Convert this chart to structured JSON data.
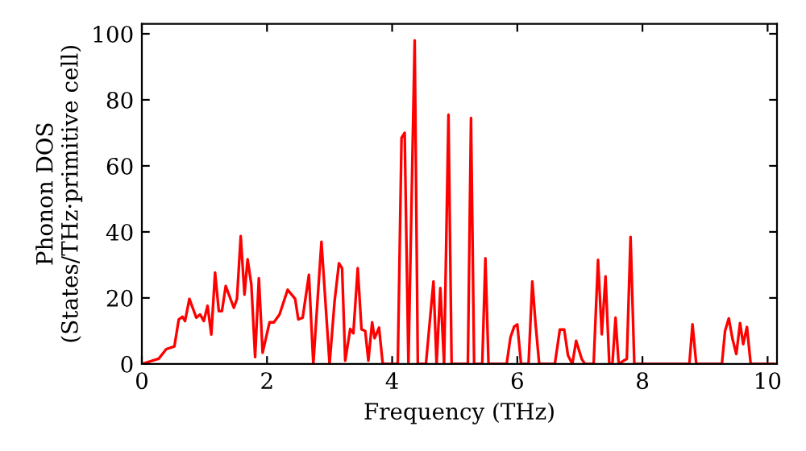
{
  "chart_data": {
    "type": "line",
    "xlabel": "Frequency (THz)",
    "ylabel": "Phonon DOS\n(States/THz·primitive cell)",
    "xlim": [
      0,
      10.15
    ],
    "ylim": [
      0,
      103
    ],
    "xticks": [
      0,
      2,
      4,
      6,
      8,
      10
    ],
    "yticks": [
      0,
      20,
      40,
      60,
      80,
      100
    ],
    "grid": false,
    "legend": false,
    "marker": "none",
    "line_style": "solid",
    "series": [
      {
        "color": "#ff0000",
        "x": [
          0,
          0.27,
          0.39,
          0.52,
          0.59,
          0.65,
          0.69,
          0.76,
          0.87,
          0.93,
          0.99,
          1.05,
          1.11,
          1.17,
          1.23,
          1.28,
          1.34,
          1.47,
          1.52,
          1.58,
          1.64,
          1.69,
          1.75,
          1.81,
          1.87,
          1.93,
          2.04,
          2.11,
          2.2,
          2.33,
          2.45,
          2.5,
          2.57,
          2.67,
          2.74,
          2.87,
          3.0,
          3.08,
          3.15,
          3.2,
          3.25,
          3.33,
          3.38,
          3.45,
          3.51,
          3.57,
          3.62,
          3.68,
          3.72,
          3.79,
          3.85,
          4.09,
          4.15,
          4.2,
          4.26,
          4.36,
          4.41,
          4.54,
          4.66,
          4.71,
          4.77,
          4.83,
          4.9,
          4.95,
          5.21,
          5.26,
          5.31,
          5.44,
          5.49,
          5.54,
          5.83,
          5.89,
          5.95,
          6.0,
          6.06,
          6.18,
          6.24,
          6.29,
          6.35,
          6.6,
          6.68,
          6.75,
          6.81,
          6.88,
          6.94,
          7.03,
          7.08,
          7.22,
          7.29,
          7.35,
          7.41,
          7.47,
          7.52,
          7.57,
          7.62,
          7.7,
          7.75,
          7.81,
          7.87,
          8.75,
          8.8,
          8.86,
          9.27,
          9.32,
          9.38,
          9.44,
          9.5,
          9.56,
          9.61,
          9.67,
          9.73,
          10.1
        ],
        "values": [
          0,
          1.6,
          4.5,
          5.3,
          13.5,
          14.3,
          13,
          19.7,
          14,
          15,
          13,
          17.6,
          8.9,
          27.7,
          16,
          16,
          23.6,
          17,
          19.7,
          38.7,
          21,
          31.7,
          24,
          2.1,
          26,
          3.4,
          12.6,
          12.6,
          15,
          22.5,
          19.7,
          13.5,
          14,
          27,
          0,
          37,
          0,
          19,
          30.5,
          29,
          1,
          10.6,
          9.3,
          29,
          10.5,
          10,
          1,
          12.6,
          7.8,
          11,
          0,
          0,
          68.5,
          70,
          0,
          98,
          0,
          0,
          25,
          0,
          23,
          0,
          75.5,
          0,
          0,
          74.5,
          0,
          0,
          32,
          0,
          0,
          8,
          11.3,
          12,
          0,
          0,
          25,
          12.6,
          0,
          0,
          10.4,
          10.4,
          2.6,
          0,
          7,
          1.5,
          0,
          0,
          31.5,
          9,
          26.5,
          0,
          0,
          14,
          0,
          1,
          1.5,
          38.5,
          0,
          0,
          12,
          0,
          0,
          10,
          13.8,
          7.5,
          3,
          12.4,
          6,
          11.2,
          0,
          0
        ]
      }
    ]
  }
}
